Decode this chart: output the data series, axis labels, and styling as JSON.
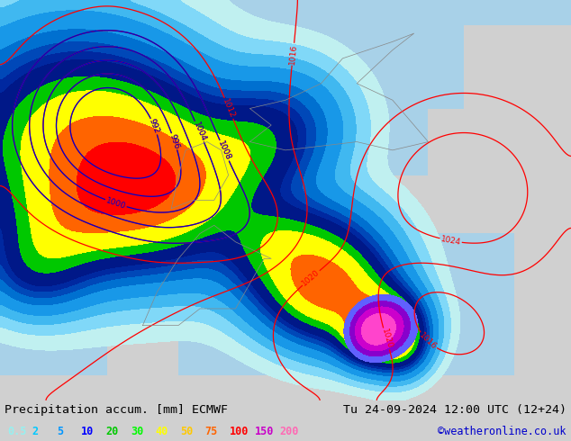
{
  "title_left": "Precipitation accum. [mm] ECMWF",
  "title_right": "Tu 24-09-2024 12:00 UTC (12+24)",
  "credit": "©weatheronline.co.uk",
  "legend_values": [
    "0.5",
    "2",
    "5",
    "10",
    "20",
    "30",
    "40",
    "50",
    "75",
    "100",
    "150",
    "200"
  ],
  "legend_colors": [
    "#96f0f0",
    "#00c8ff",
    "#0096ff",
    "#0000ff",
    "#00c800",
    "#00fa00",
    "#ffff00",
    "#ffc800",
    "#ff6400",
    "#ff0000",
    "#c800c8",
    "#ff69b4"
  ],
  "bottom_bg": "#d0d0d0",
  "title_fontsize": 9.5,
  "credit_color": "#0000cc",
  "map_land_color": "#c8e6a0",
  "map_sea_color": "#a8d0e8",
  "map_border_color": "#888888",
  "isobar_red_color": "#ff0000",
  "isobar_blue_color": "#0000cc",
  "isobar_fontsize": 6.5,
  "isobar_linewidth": 0.9
}
